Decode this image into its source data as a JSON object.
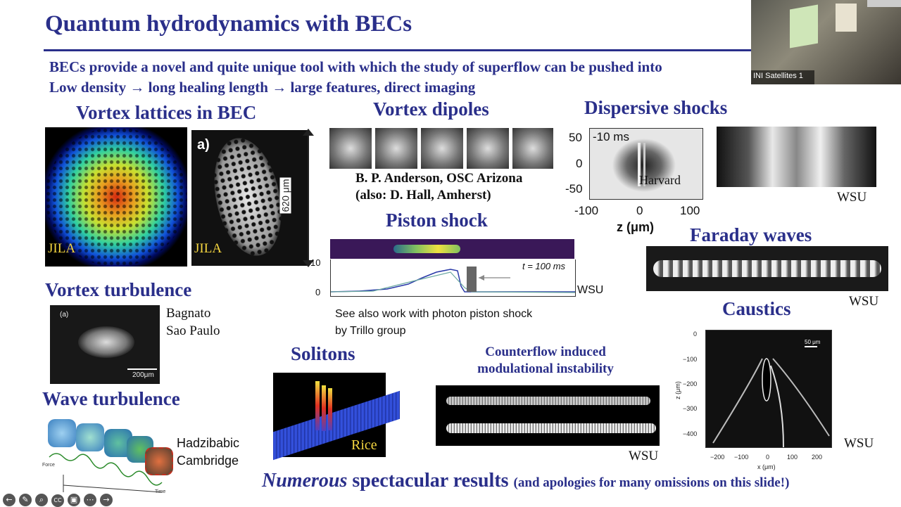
{
  "slide": {
    "title": "Quantum hydrodynamics with BECs",
    "bullet1": "BECs provide a novel and quite unique tool with which the study of superflow can be pushed into",
    "bullet2": "Low density → long healing length → large features, direct imaging",
    "bottom_em": "Numerous",
    "bottom_main": " spectacular results ",
    "bottom_small": "(and apologies for many omissions on this slide!)"
  },
  "panels": {
    "vortex_lattices": {
      "heading": "Vortex lattices in BEC",
      "label1": "JILA",
      "label2": "JILA",
      "panel_letter": "a)",
      "scale": "620 μm"
    },
    "vortex_dipoles": {
      "heading": "Vortex dipoles",
      "credit1": "B. P. Anderson, OSC Arizona",
      "credit2": "(also: D. Hall, Amherst)"
    },
    "dispersive_shocks": {
      "heading": "Dispersive shocks",
      "time": "-10 ms",
      "harvard": "Harvard",
      "y_ticks": [
        "50",
        "0",
        "-50"
      ],
      "x_ticks": [
        "-100",
        "0",
        "100"
      ],
      "xlabel": "z (μm)",
      "wsu": "WSU"
    },
    "piston_shock": {
      "heading": "Piston shock",
      "y_ticks": [
        "10",
        "0"
      ],
      "time": "t = 100 ms",
      "wsu": "WSU",
      "note1": "See also work with photon piston shock",
      "note2": "by Trillo group"
    },
    "faraday_waves": {
      "heading": "Faraday waves",
      "wsu": "WSU"
    },
    "vortex_turbulence": {
      "heading": "Vortex turbulence",
      "panel_letter": "(a)",
      "scale": "200μm",
      "credit1": "Bagnato",
      "credit2": "Sao Paulo"
    },
    "solitons": {
      "heading": "Solitons",
      "label": "Rice"
    },
    "counterflow": {
      "heading1": "Counterflow induced",
      "heading2": "modulational instability",
      "wsu": "WSU"
    },
    "caustics": {
      "heading": "Caustics",
      "scale": "50 μm",
      "y_ticks": [
        "0",
        "−100",
        "−200",
        "−300",
        "−400"
      ],
      "x_ticks": [
        "−200",
        "−100",
        "0",
        "100",
        "200"
      ],
      "ylabel": "z (μm)",
      "xlabel": "x (μm)",
      "wsu": "WSU"
    },
    "wave_turbulence": {
      "heading": "Wave turbulence",
      "credit1": "Hadzibabic",
      "credit2": "Cambridge",
      "axis1": "Force",
      "axis2": "Time"
    }
  },
  "video": {
    "label": "INI Satellites 1"
  },
  "toolbar": {
    "icons": [
      "back-icon",
      "pen-icon",
      "zoom-icon",
      "captions-icon",
      "layout-icon",
      "more-icon",
      "forward-icon"
    ],
    "glyphs": [
      "←",
      "✎",
      "⌕",
      "CC",
      "▣",
      "⋯",
      "→"
    ]
  }
}
